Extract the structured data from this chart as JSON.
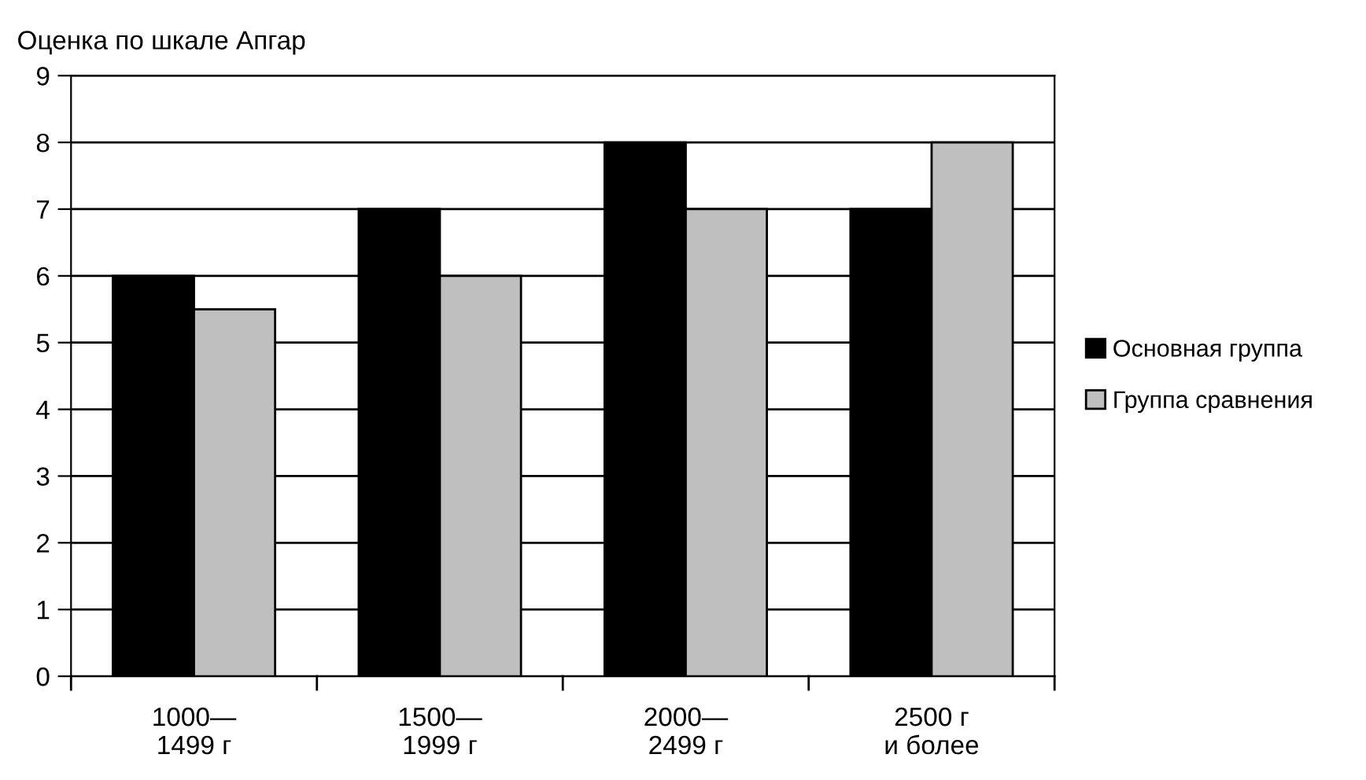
{
  "chart_data": {
    "type": "bar",
    "ylabel": "Оценка по шкале Апгар",
    "categories": [
      "1000—\n1499 г",
      "1500—\n1999 г",
      "2000—\n2499 г",
      "2500 г\nи более"
    ],
    "series": [
      {
        "name": "Основная группа",
        "color": "#000000",
        "values": [
          6,
          7,
          8,
          7
        ]
      },
      {
        "name": "Группа сравнения",
        "color": "#bfbfbf",
        "values": [
          5.5,
          6,
          7,
          8
        ]
      }
    ],
    "ylim": [
      0,
      9
    ],
    "yticks": [
      0,
      1,
      2,
      3,
      4,
      5,
      6,
      7,
      8,
      9
    ],
    "grid": "y",
    "legend": "right"
  }
}
